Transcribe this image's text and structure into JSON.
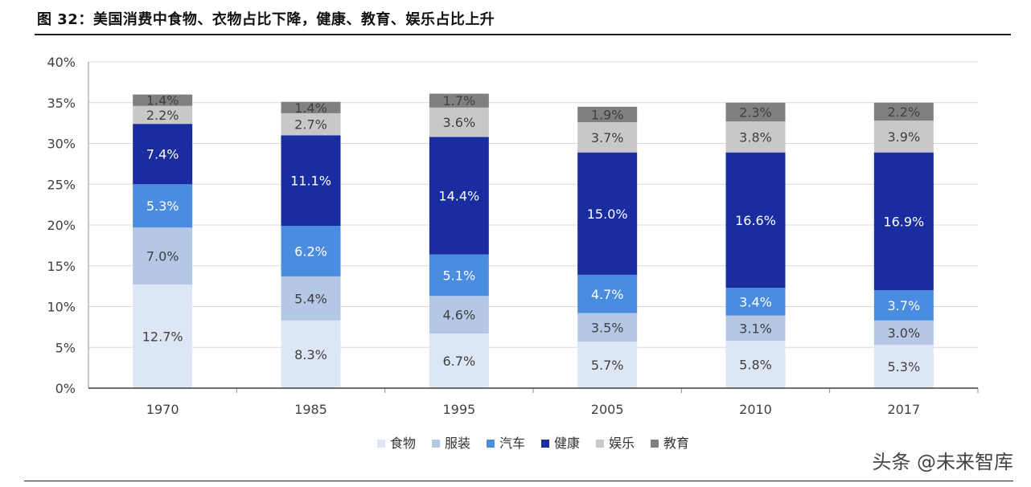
{
  "title": "图 32：美国消费中食物、衣物占比下降，健康、教育、娱乐占比上升",
  "watermark": "头条 @未来智库",
  "chart_data": {
    "type": "bar",
    "stacked": true,
    "categories": [
      "1970",
      "1985",
      "1995",
      "2005",
      "2010",
      "2017"
    ],
    "y_ticks": [
      "0%",
      "5%",
      "10%",
      "15%",
      "20%",
      "25%",
      "30%",
      "35%",
      "40%"
    ],
    "ylim": [
      0,
      40
    ],
    "grid": true,
    "legend_position": "bottom",
    "series": [
      {
        "name": "食物",
        "color": "#dce6f4",
        "label_color": "#404040",
        "values": [
          12.7,
          8.3,
          6.7,
          5.7,
          5.8,
          5.3
        ]
      },
      {
        "name": "服装",
        "color": "#b4c8e6",
        "label_color": "#404040",
        "values": [
          7.0,
          5.4,
          4.6,
          3.5,
          3.1,
          3.0
        ]
      },
      {
        "name": "汽车",
        "color": "#4a8ce0",
        "label_color": "#ffffff",
        "values": [
          5.3,
          6.2,
          5.1,
          4.7,
          3.4,
          3.7
        ]
      },
      {
        "name": "健康",
        "color": "#1a2da0",
        "label_color": "#ffffff",
        "values": [
          7.4,
          11.1,
          14.4,
          15.0,
          16.6,
          16.9
        ]
      },
      {
        "name": "娱乐",
        "color": "#c8c8c8",
        "label_color": "#404040",
        "values": [
          2.2,
          2.7,
          3.6,
          3.7,
          3.8,
          3.9
        ]
      },
      {
        "name": "教育",
        "color": "#808080",
        "label_color": "#404040",
        "values": [
          1.4,
          1.4,
          1.7,
          1.9,
          2.3,
          2.2
        ]
      }
    ]
  }
}
